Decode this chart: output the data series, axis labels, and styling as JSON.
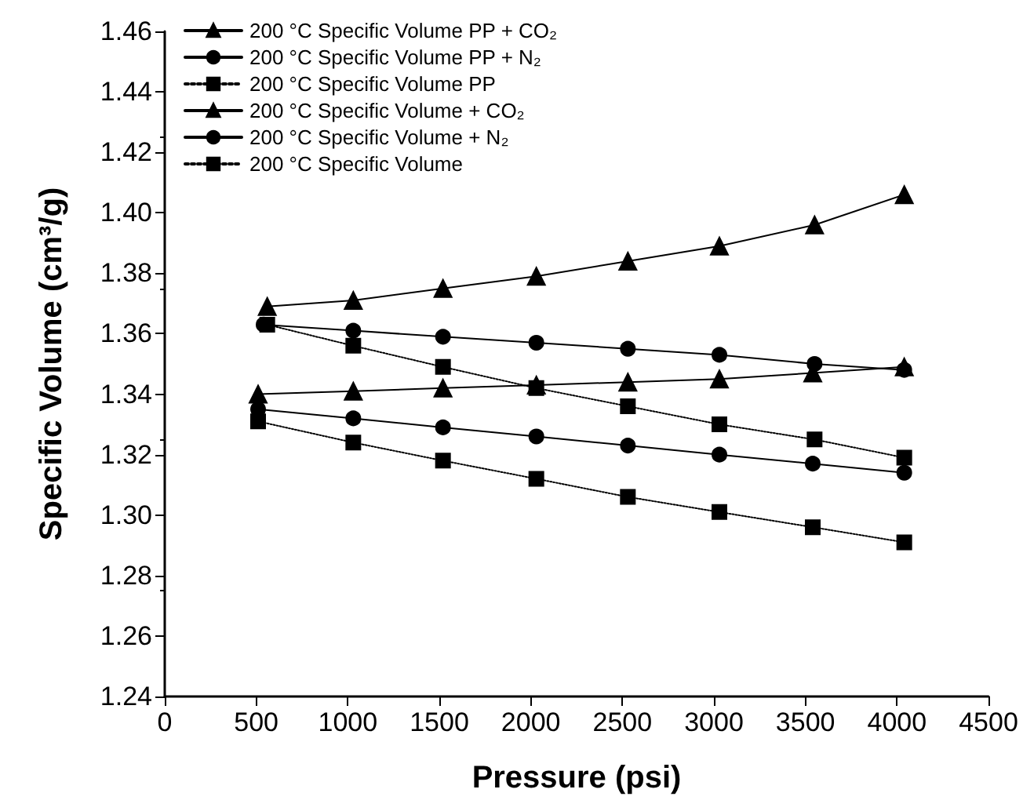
{
  "chart_data": {
    "type": "line",
    "xlabel": "Pressure (psi)",
    "ylabel": "Specific Volume (cm³/g)",
    "xlim": [
      0,
      4500
    ],
    "xticks": [
      0,
      500,
      1000,
      1500,
      2000,
      2500,
      3000,
      3500,
      4000,
      4500
    ],
    "ylim": [
      1.24,
      1.46
    ],
    "yticks": [
      1.24,
      1.26,
      1.28,
      {
        "value": 1.3,
        "label": "1.30"
      },
      1.32,
      1.34,
      1.36,
      1.38,
      {
        "value": 1.4,
        "label": "1.40"
      },
      1.42,
      1.44,
      1.46
    ],
    "grid": false,
    "legend": "top left",
    "series": [
      {
        "name": "200 °C Specific Volume PP + CO₂",
        "color": "#000000",
        "marker": "triangle",
        "line_style": "solid",
        "x": [
          560,
          1030,
          1520,
          2030,
          2530,
          3030,
          3550,
          4040
        ],
        "values": [
          1.369,
          1.371,
          1.375,
          1.379,
          1.384,
          1.389,
          1.396,
          1.406
        ]
      },
      {
        "name": "200 °C Specific Volume PP + N₂",
        "color": "#000000",
        "marker": "circle",
        "line_style": "solid",
        "x": [
          540,
          1030,
          1520,
          2030,
          2530,
          3030,
          3550,
          4040
        ],
        "values": [
          1.363,
          1.361,
          1.359,
          1.357,
          1.355,
          1.353,
          1.35,
          1.348
        ]
      },
      {
        "name": "200 °C Specific Volume PP",
        "color": "#000000",
        "marker": "square",
        "line_style": "dotted",
        "x": [
          560,
          1030,
          1520,
          2030,
          2530,
          3030,
          3550,
          4040
        ],
        "values": [
          1.363,
          1.356,
          1.349,
          1.342,
          1.336,
          1.33,
          1.325,
          1.319
        ]
      },
      {
        "name": "200 °C Specific Volume + CO₂",
        "color": "#000000",
        "marker": "triangle",
        "line_style": "solid",
        "x": [
          510,
          1030,
          1520,
          2030,
          2530,
          3030,
          3540,
          4040
        ],
        "values": [
          1.34,
          1.341,
          1.342,
          1.343,
          1.344,
          1.345,
          1.347,
          1.349
        ]
      },
      {
        "name": "200 °C Specific Volume + N₂",
        "color": "#000000",
        "marker": "circle",
        "line_style": "solid",
        "x": [
          510,
          1030,
          1520,
          2030,
          2530,
          3030,
          3540,
          4040
        ],
        "values": [
          1.335,
          1.332,
          1.329,
          1.326,
          1.323,
          1.32,
          1.317,
          1.314
        ]
      },
      {
        "name": "200 °C Specific Volume",
        "color": "#000000",
        "marker": "square",
        "line_style": "dotted",
        "x": [
          510,
          1030,
          1520,
          2030,
          2530,
          3030,
          3540,
          4040
        ],
        "values": [
          1.331,
          1.324,
          1.318,
          1.312,
          1.306,
          1.301,
          1.296,
          1.291
        ]
      }
    ]
  }
}
